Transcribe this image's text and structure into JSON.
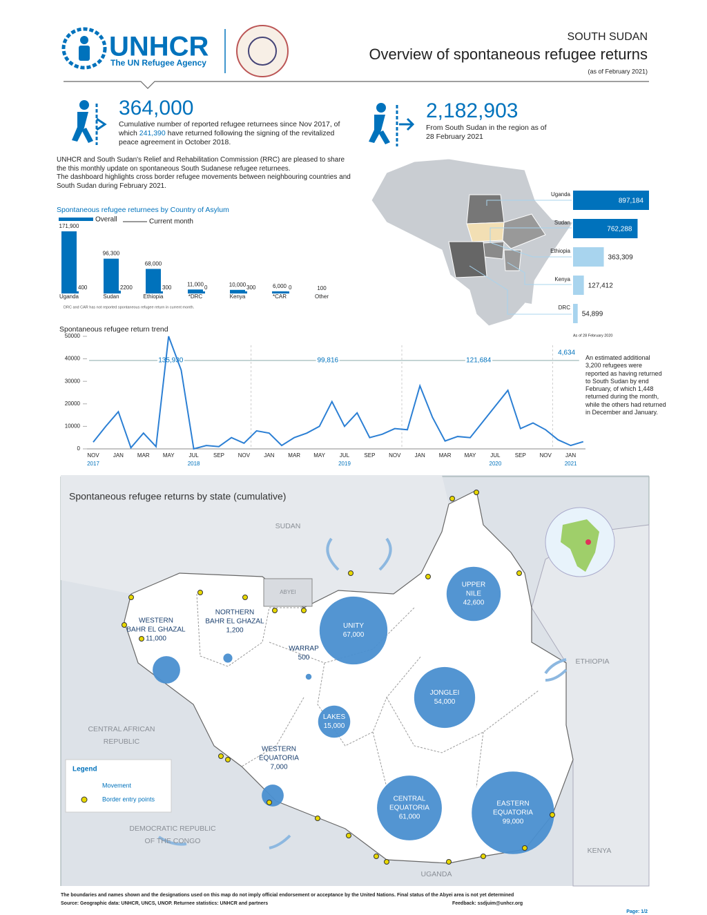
{
  "header": {
    "org": "UNHCR",
    "org_sub": "The UN Refugee Agency",
    "country": "SOUTH SUDAN",
    "title": "Overview of spontaneous refugee returns",
    "date": "(as of February  2021)"
  },
  "stat_returnees": {
    "value": "364,000",
    "text_1": "Cumulative number of reported refugee returnees since Nov 2017, of which ",
    "highlight": "241,390",
    "text_2": " have returned following the signing of the revitalized peace agreement in October 2018."
  },
  "stat_region": {
    "value": "2,182,903",
    "text": "From South Sudan in the region as of 28 February 2021"
  },
  "intro": [
    "UNHCR and South Sudan's Relief and Rehabilitation Commission (RRC) are pleased to share the this monthly update on spontaneous South Sudanese refugee returnees.",
    "The dashboard highlights cross border refugee movements between neighbouring countries and South Sudan during February 2021."
  ],
  "asylum_chart": {
    "type": "bar",
    "title": "Spontaneous refugee returnees by Country of Asylum",
    "categories": [
      "Uganda",
      "Sudan",
      "Ethiopia",
      "*DRC",
      "Kenya",
      "*CAR",
      "Other"
    ],
    "series": [
      {
        "name": "Overall",
        "color": "#0072bc",
        "values": [
          171900,
          96300,
          68000,
          11000,
          10000,
          6000,
          100
        ],
        "value_labels": [
          "171,900",
          "96,300",
          "68,000",
          "11,000",
          "10,000",
          "6,000",
          "100"
        ]
      },
      {
        "name": "Current month",
        "color": "#0072bc",
        "values": [
          400,
          2200,
          300,
          0,
          300,
          0,
          null
        ]
      }
    ],
    "note": "DRC and CAR has not reported spontaneous refugee return in current month."
  },
  "region_chart": {
    "type": "bar",
    "categories": [
      "Uganda",
      "Sudan",
      "Ethiopia",
      "Kenya",
      "DRC"
    ],
    "values": [
      897184,
      762288,
      363309,
      127412,
      54899
    ],
    "value_labels": [
      "897,184",
      "762,288",
      "363,309",
      "127,412",
      "54,899"
    ],
    "colors": [
      "#0072bc",
      "#0072bc",
      "#a8d4ee",
      "#a8d4ee",
      "#a8d4ee"
    ],
    "note": "As of 28 February 2020"
  },
  "trend_chart": {
    "type": "line",
    "title": "Spontaneous refugee return trend",
    "color": "#2b7fd4",
    "ylim": [
      0,
      50000
    ],
    "yticks": [
      0,
      10000,
      20000,
      30000,
      40000,
      50000
    ],
    "categories": [
      "NOV",
      null,
      "JAN",
      null,
      "MAR",
      null,
      "MAY",
      null,
      "JUL",
      null,
      "SEP",
      null,
      "NOV",
      null,
      "JAN",
      null,
      "MAR",
      null,
      "MAY",
      null,
      "JUL",
      null,
      "SEP",
      null,
      "NOV",
      null,
      "JAN",
      null,
      "MAR",
      null,
      "MAY",
      null,
      "JUL",
      null,
      "SEP",
      null,
      "NOV",
      null,
      "JAN",
      null
    ],
    "years": [
      "2017",
      null,
      null,
      null,
      null,
      null,
      null,
      null,
      "2018",
      null,
      null,
      null,
      null,
      null,
      null,
      null,
      null,
      null,
      null,
      null,
      "2019",
      null,
      null,
      null,
      null,
      null,
      null,
      null,
      null,
      null,
      null,
      null,
      "2020",
      null,
      null,
      null,
      null,
      null,
      "2021",
      null
    ],
    "values": [
      3000,
      10000,
      16500,
      500,
      7000,
      1000,
      50000,
      35000,
      0,
      1500,
      1000,
      5000,
      2500,
      8000,
      7000,
      1500,
      5000,
      7000,
      10000,
      21000,
      10000,
      16000,
      5000,
      6500,
      9000,
      8500,
      28000,
      14000,
      3500,
      5500,
      5000,
      12000,
      19000,
      26000,
      9000,
      11500,
      8500,
      4000,
      1500,
      3200
    ],
    "periods": [
      "135,930",
      "99,816",
      "121,684",
      "4,634"
    ],
    "note": "An estimated additional 3,200 refugees were reported as having returned to South Sudan by end February, of which 1,448 returned during the month, while the others had returned in December and January."
  },
  "map": {
    "title": "Spontaneous refugee returns by state (cumulative)",
    "states": [
      {
        "name": [
          "WESTERN",
          "BAHR EL GHAZAL"
        ],
        "value": 11000,
        "value_label": "11,000"
      },
      {
        "name": [
          "NORTHERN",
          "BAHR EL GHAZAL"
        ],
        "value": 1200,
        "value_label": "1,200"
      },
      {
        "name": [
          "WARRAP"
        ],
        "value": 500,
        "value_label": "500"
      },
      {
        "name": [
          "UNITY"
        ],
        "value": 67000,
        "value_label": "67,000"
      },
      {
        "name": [
          "UPPER",
          "NILE"
        ],
        "value": 42600,
        "value_label": "42,600"
      },
      {
        "name": [
          "JONGLEI"
        ],
        "value": 54000,
        "value_label": "54,000"
      },
      {
        "name": [
          "LAKES"
        ],
        "value": 15000,
        "value_label": "15,000"
      },
      {
        "name": [
          "WESTERN",
          "EQUATORIA"
        ],
        "value": 7000,
        "value_label": "7,000"
      },
      {
        "name": [
          "CENTRAL",
          "EQUATORIA"
        ],
        "value": 61000,
        "value_label": "61,000"
      },
      {
        "name": [
          "EASTERN",
          "EQUATORIA"
        ],
        "value": 99000,
        "value_label": "99,000"
      }
    ],
    "countries": [
      "SUDAN",
      "ETHIOPIA",
      "CENTRAL AFRICAN",
      "REPUBLIC",
      "DEMOCRATIC REPUBLIC",
      "OF THE CONGO",
      "KENYA",
      "UGANDA",
      "ABYEI"
    ],
    "legend": {
      "title": "Legend",
      "movement": "Movement",
      "entry": "Border entry points"
    }
  },
  "footer": {
    "disclaimer": "The boundaries and names shown and the designations used on this map do not imply official endorsement or acceptance by the United Nations. Final status of the Abyei area is not yet determined",
    "sources": "Source: Geographic data: UNHCR, UNCS, UNOP. Returnee statistics: UNHCR and partners",
    "feedback": "Feedback: ssdjuim@unhcr.org",
    "page": "Page: 1/2"
  }
}
